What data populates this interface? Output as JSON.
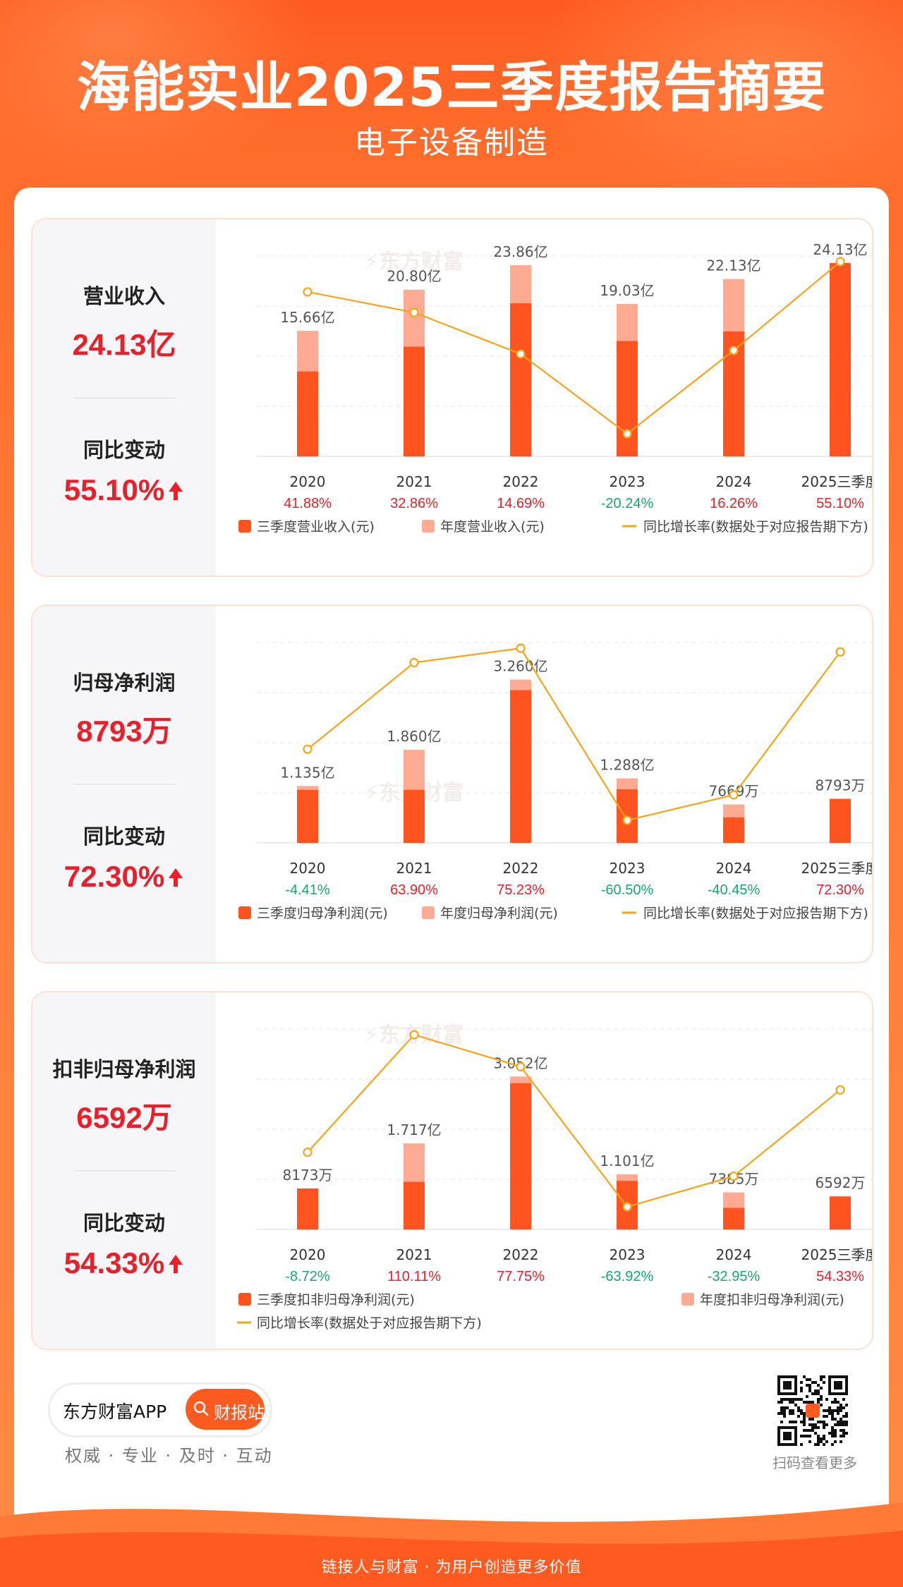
{
  "header": {
    "title": "海能实业2025三季度报告摘要",
    "subtitle": "电子设备制造"
  },
  "colors": {
    "quarter": "#ff5420",
    "annual": "#ffab94",
    "line": "#f8a419",
    "positive": "#e8202a",
    "negative": "#16a86b"
  },
  "watermark": "东方财富",
  "panels": [
    {
      "metric_label": "营业收入",
      "metric_value": "24.13亿",
      "change_label": "同比变动",
      "change_value": "55.10%",
      "chart_data": {
        "type": "bar+line",
        "categories": [
          "2020",
          "2021",
          "2022",
          "2023",
          "2024",
          "2025三季度"
        ],
        "value_labels": [
          "15.66亿",
          "20.80亿",
          "23.86亿",
          "19.03亿",
          "22.13亿",
          "24.13亿"
        ],
        "annual_values": [
          15.66,
          20.8,
          23.86,
          19.03,
          22.13,
          24.13
        ],
        "quarter_values": [
          10.6,
          13.7,
          19.1,
          14.4,
          15.6,
          24.13
        ],
        "growth_labels": [
          "41.88%",
          "32.86%",
          "14.69%",
          "-20.24%",
          "16.26%",
          "55.10%"
        ],
        "growth_values": [
          41.88,
          32.86,
          14.69,
          -20.24,
          16.26,
          55.1
        ],
        "y_max": 25,
        "legend": [
          "三季度营业收入(元)",
          "年度营业收入(元)",
          "同比增长率(数据处于对应报告期下方)"
        ]
      }
    },
    {
      "metric_label": "归母净利润",
      "metric_value": "8793万",
      "change_label": "同比变动",
      "change_value": "72.30%",
      "chart_data": {
        "type": "bar+line",
        "categories": [
          "2020",
          "2021",
          "2022",
          "2023",
          "2024",
          "2025三季度"
        ],
        "value_labels": [
          "1.135亿",
          "1.860亿",
          "3.260亿",
          "1.288亿",
          "7669万",
          "8793万"
        ],
        "annual_values": [
          1.135,
          1.86,
          3.26,
          1.288,
          0.7669,
          0.8793
        ],
        "quarter_values": [
          1.06,
          1.06,
          3.05,
          1.07,
          0.51,
          0.8793
        ],
        "growth_labels": [
          "-4.41%",
          "63.90%",
          "75.23%",
          "-60.50%",
          "-40.45%",
          "72.30%"
        ],
        "growth_values": [
          -4.41,
          63.9,
          75.23,
          -60.5,
          -40.45,
          72.3
        ],
        "y_max": 4,
        "legend": [
          "三季度归母净利润(元)",
          "年度归母净利润(元)",
          "同比增长率(数据处于对应报告期下方)"
        ]
      }
    },
    {
      "metric_label": "扣非归母净利润",
      "metric_value": "6592万",
      "change_label": "同比变动",
      "change_value": "54.33%",
      "chart_data": {
        "type": "bar+line",
        "categories": [
          "2020",
          "2021",
          "2022",
          "2023",
          "2024",
          "2025三季度"
        ],
        "value_labels": [
          "8173万",
          "1.717亿",
          "3.052亿",
          "1.101亿",
          "7385万",
          "6592万"
        ],
        "annual_values": [
          0.8173,
          1.717,
          3.052,
          1.101,
          0.7385,
          0.6592
        ],
        "quarter_values": [
          0.8173,
          0.95,
          2.92,
          0.97,
          0.43,
          0.6592
        ],
        "growth_labels": [
          "-8.72%",
          "110.11%",
          "77.75%",
          "-63.92%",
          "-32.95%",
          "54.33%"
        ],
        "growth_values": [
          -8.72,
          110.11,
          77.75,
          -63.92,
          -32.95,
          54.33
        ],
        "y_max": 4,
        "legend": [
          "三季度扣非归母净利润(元)",
          "年度扣非归母净利润(元)",
          "同比增长率(数据处于对应报告期下方)"
        ]
      }
    }
  ],
  "footer": {
    "app_name": "东方财富APP",
    "button_label": "财报站",
    "slogan": "权威 · 专业 · 及时 · 互动",
    "qr_caption": "扫码查看更多",
    "tagline": "链接人与财富 · 为用户创造更多价值"
  }
}
